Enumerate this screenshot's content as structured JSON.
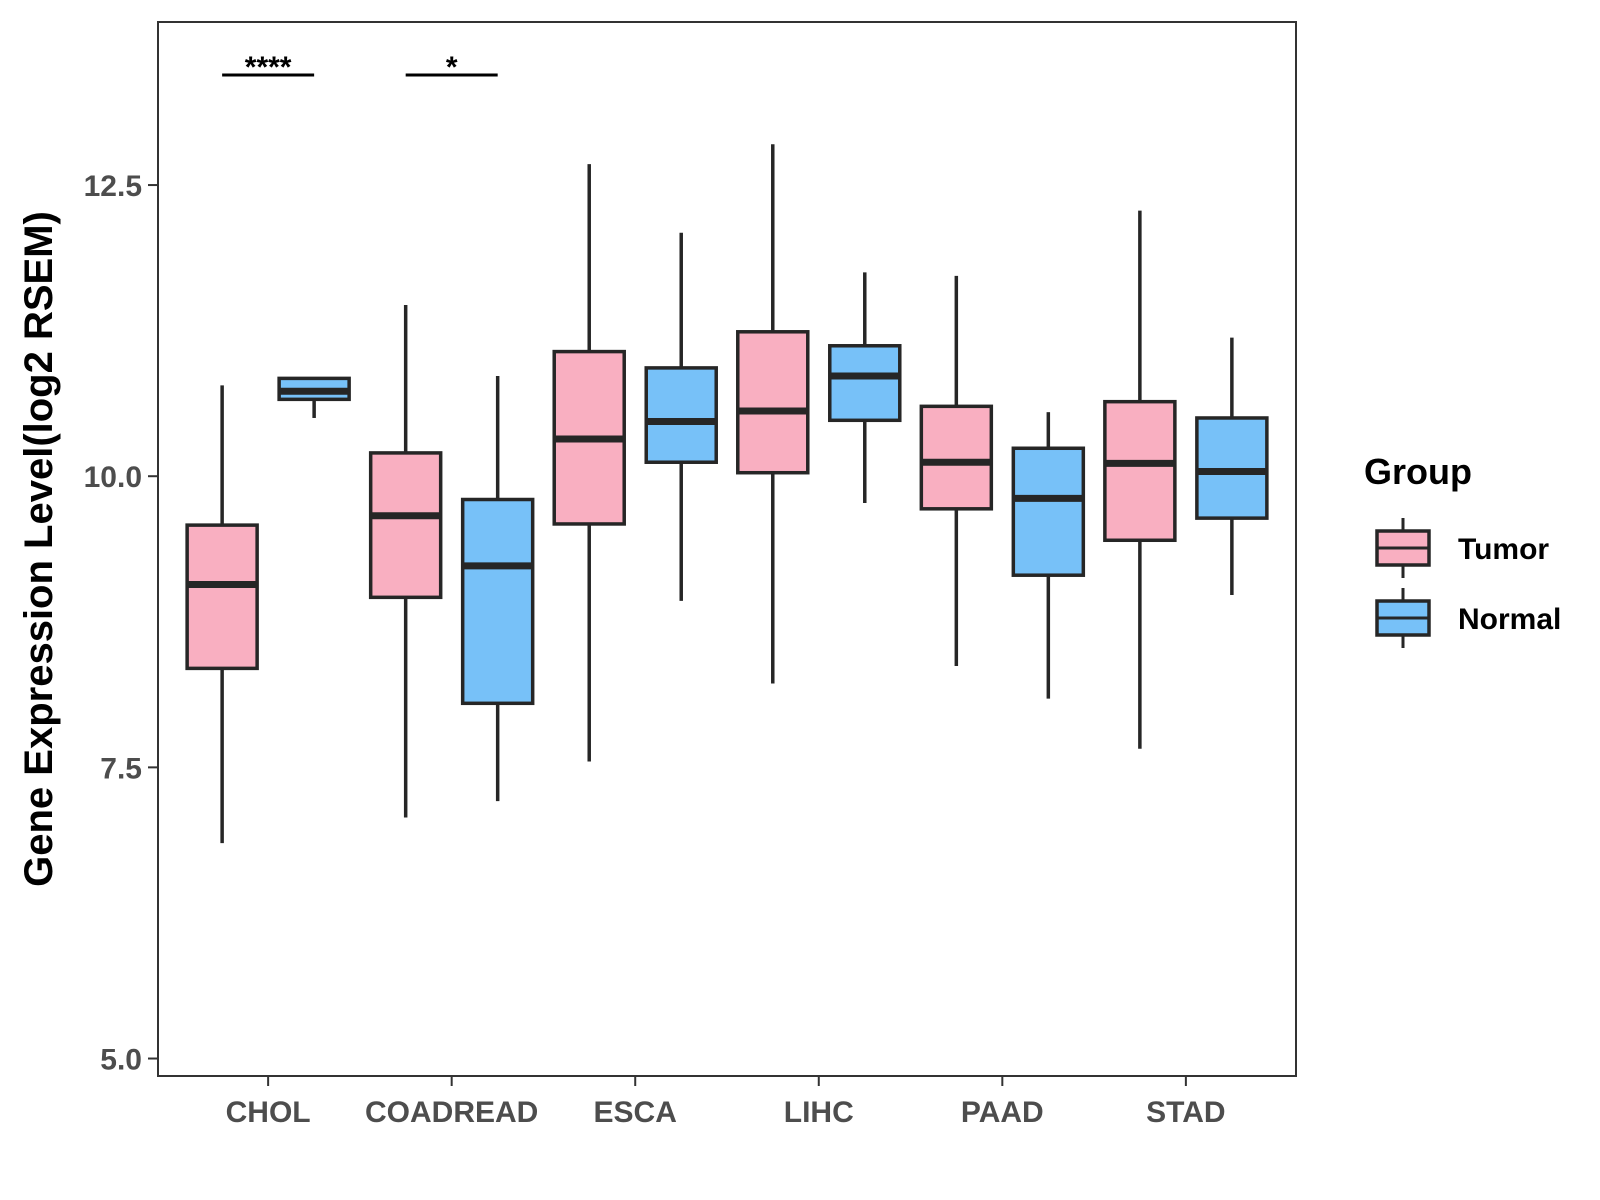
{
  "chart_data": {
    "type": "boxplot",
    "title": "",
    "xlabel": "",
    "ylabel": "Gene Expression Level(log2 RSEM)",
    "ylim": [
      4.85,
      13.9
    ],
    "yticks": [
      5.0,
      7.5,
      10.0,
      12.5
    ],
    "ytick_labels": [
      "5.0",
      "7.5",
      "10.0",
      "12.5"
    ],
    "categories": [
      "CHOL",
      "COADREAD",
      "ESCA",
      "LIHC",
      "PAAD",
      "STAD"
    ],
    "legend": {
      "title": "Group",
      "position": "right",
      "entries": [
        {
          "name": "Tumor",
          "color": "#F9AFC1"
        },
        {
          "name": "Normal",
          "color": "#77C1F8"
        }
      ]
    },
    "series": [
      {
        "name": "Tumor",
        "color": "#F9AFC1",
        "boxes": [
          {
            "min": 6.85,
            "q1": 8.35,
            "median": 9.07,
            "q3": 9.58,
            "max": 10.78
          },
          {
            "min": 7.07,
            "q1": 8.96,
            "median": 9.66,
            "q3": 10.2,
            "max": 11.47
          },
          {
            "min": 7.55,
            "q1": 9.59,
            "median": 10.32,
            "q3": 11.07,
            "max": 12.68
          },
          {
            "min": 8.22,
            "q1": 10.03,
            "median": 10.56,
            "q3": 11.24,
            "max": 12.85
          },
          {
            "min": 8.37,
            "q1": 9.72,
            "median": 10.12,
            "q3": 10.6,
            "max": 11.72
          },
          {
            "min": 7.66,
            "q1": 9.45,
            "median": 10.11,
            "q3": 10.64,
            "max": 12.28
          }
        ]
      },
      {
        "name": "Normal",
        "color": "#77C1F8",
        "boxes": [
          {
            "min": 10.5,
            "q1": 10.66,
            "median": 10.73,
            "q3": 10.84,
            "max": 10.84
          },
          {
            "min": 7.21,
            "q1": 8.05,
            "median": 9.23,
            "q3": 9.8,
            "max": 10.86
          },
          {
            "min": 8.93,
            "q1": 10.12,
            "median": 10.47,
            "q3": 10.93,
            "max": 12.09
          },
          {
            "min": 9.77,
            "q1": 10.48,
            "median": 10.86,
            "q3": 11.12,
            "max": 11.75
          },
          {
            "min": 8.09,
            "q1": 9.15,
            "median": 9.81,
            "q3": 10.24,
            "max": 10.55
          },
          {
            "min": 8.98,
            "q1": 9.64,
            "median": 10.04,
            "q3": 10.5,
            "max": 11.19
          }
        ]
      }
    ],
    "significance": [
      {
        "category": "CHOL",
        "label": "****"
      },
      {
        "category": "COADREAD",
        "label": "*"
      }
    ]
  }
}
